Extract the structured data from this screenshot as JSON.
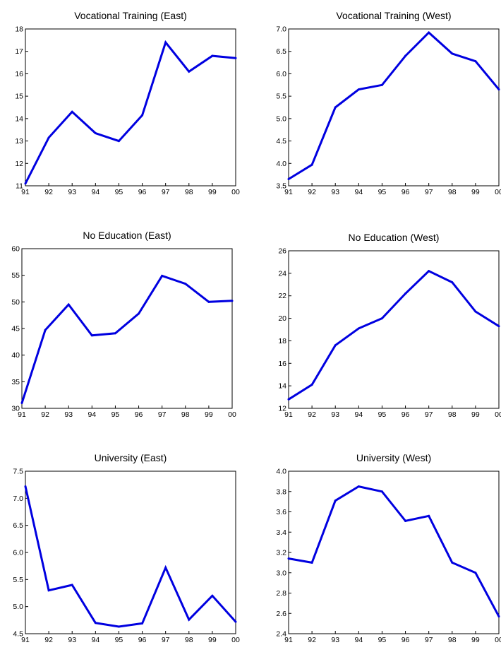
{
  "chart_data": [
    {
      "type": "line",
      "title": "Vocational Training (East)",
      "categories": [
        "91",
        "92",
        "93",
        "94",
        "95",
        "96",
        "97",
        "98",
        "99",
        "00"
      ],
      "values": [
        11.1,
        13.15,
        14.3,
        13.35,
        13.0,
        14.15,
        17.4,
        16.1,
        16.8,
        16.7
      ],
      "ylim": [
        11,
        18
      ],
      "yticks": [
        "11",
        "12",
        "13",
        "14",
        "15",
        "16",
        "17",
        "18"
      ],
      "color": "#0000e0"
    },
    {
      "type": "line",
      "title": "Vocational Training (West)",
      "categories": [
        "91",
        "92",
        "93",
        "94",
        "95",
        "96",
        "97",
        "98",
        "99",
        "00"
      ],
      "values": [
        3.65,
        3.97,
        5.25,
        5.65,
        5.75,
        6.4,
        6.92,
        6.45,
        6.28,
        5.65
      ],
      "ylim": [
        3.5,
        7.0
      ],
      "yticks": [
        "3.5",
        "4.0",
        "4.5",
        "5.0",
        "5.5",
        "6.0",
        "6.5",
        "7.0"
      ],
      "color": "#0000e0"
    },
    {
      "type": "line",
      "title": "No Education (East)",
      "categories": [
        "91",
        "92",
        "93",
        "94",
        "95",
        "96",
        "97",
        "98",
        "99",
        "00"
      ],
      "values": [
        31.0,
        44.7,
        49.5,
        43.7,
        44.1,
        47.8,
        54.9,
        53.4,
        50.0,
        50.2
      ],
      "ylim": [
        30,
        60
      ],
      "yticks": [
        "30",
        "35",
        "40",
        "45",
        "50",
        "55",
        "60"
      ],
      "color": "#0000e0"
    },
    {
      "type": "line",
      "title": "No Education (West)",
      "categories": [
        "91",
        "92",
        "93",
        "94",
        "95",
        "96",
        "97",
        "98",
        "99",
        "00"
      ],
      "values": [
        12.8,
        14.1,
        17.6,
        19.1,
        20.0,
        22.2,
        24.2,
        23.2,
        20.6,
        19.3
      ],
      "ylim": [
        12,
        26
      ],
      "yticks": [
        "12",
        "14",
        "16",
        "18",
        "20",
        "22",
        "24",
        "26"
      ],
      "color": "#0000e0"
    },
    {
      "type": "line",
      "title": "University (East)",
      "categories": [
        "91",
        "92",
        "93",
        "94",
        "95",
        "96",
        "97",
        "98",
        "99",
        "00"
      ],
      "values": [
        7.22,
        5.3,
        5.4,
        4.7,
        4.63,
        4.69,
        5.72,
        4.76,
        5.2,
        4.72
      ],
      "ylim": [
        4.5,
        7.5
      ],
      "yticks": [
        "4.5",
        "5.0",
        "5.5",
        "6.0",
        "6.5",
        "7.0",
        "7.5"
      ],
      "color": "#0000e0"
    },
    {
      "type": "line",
      "title": "University (West)",
      "categories": [
        "91",
        "92",
        "93",
        "94",
        "95",
        "96",
        "97",
        "98",
        "99",
        "00"
      ],
      "values": [
        3.14,
        3.1,
        3.71,
        3.85,
        3.8,
        3.51,
        3.56,
        3.1,
        3.0,
        2.57
      ],
      "ylim": [
        2.4,
        4.0
      ],
      "yticks": [
        "2.4",
        "2.6",
        "2.8",
        "3.0",
        "3.2",
        "3.4",
        "3.6",
        "3.8",
        "4.0"
      ],
      "color": "#0000e0"
    }
  ]
}
